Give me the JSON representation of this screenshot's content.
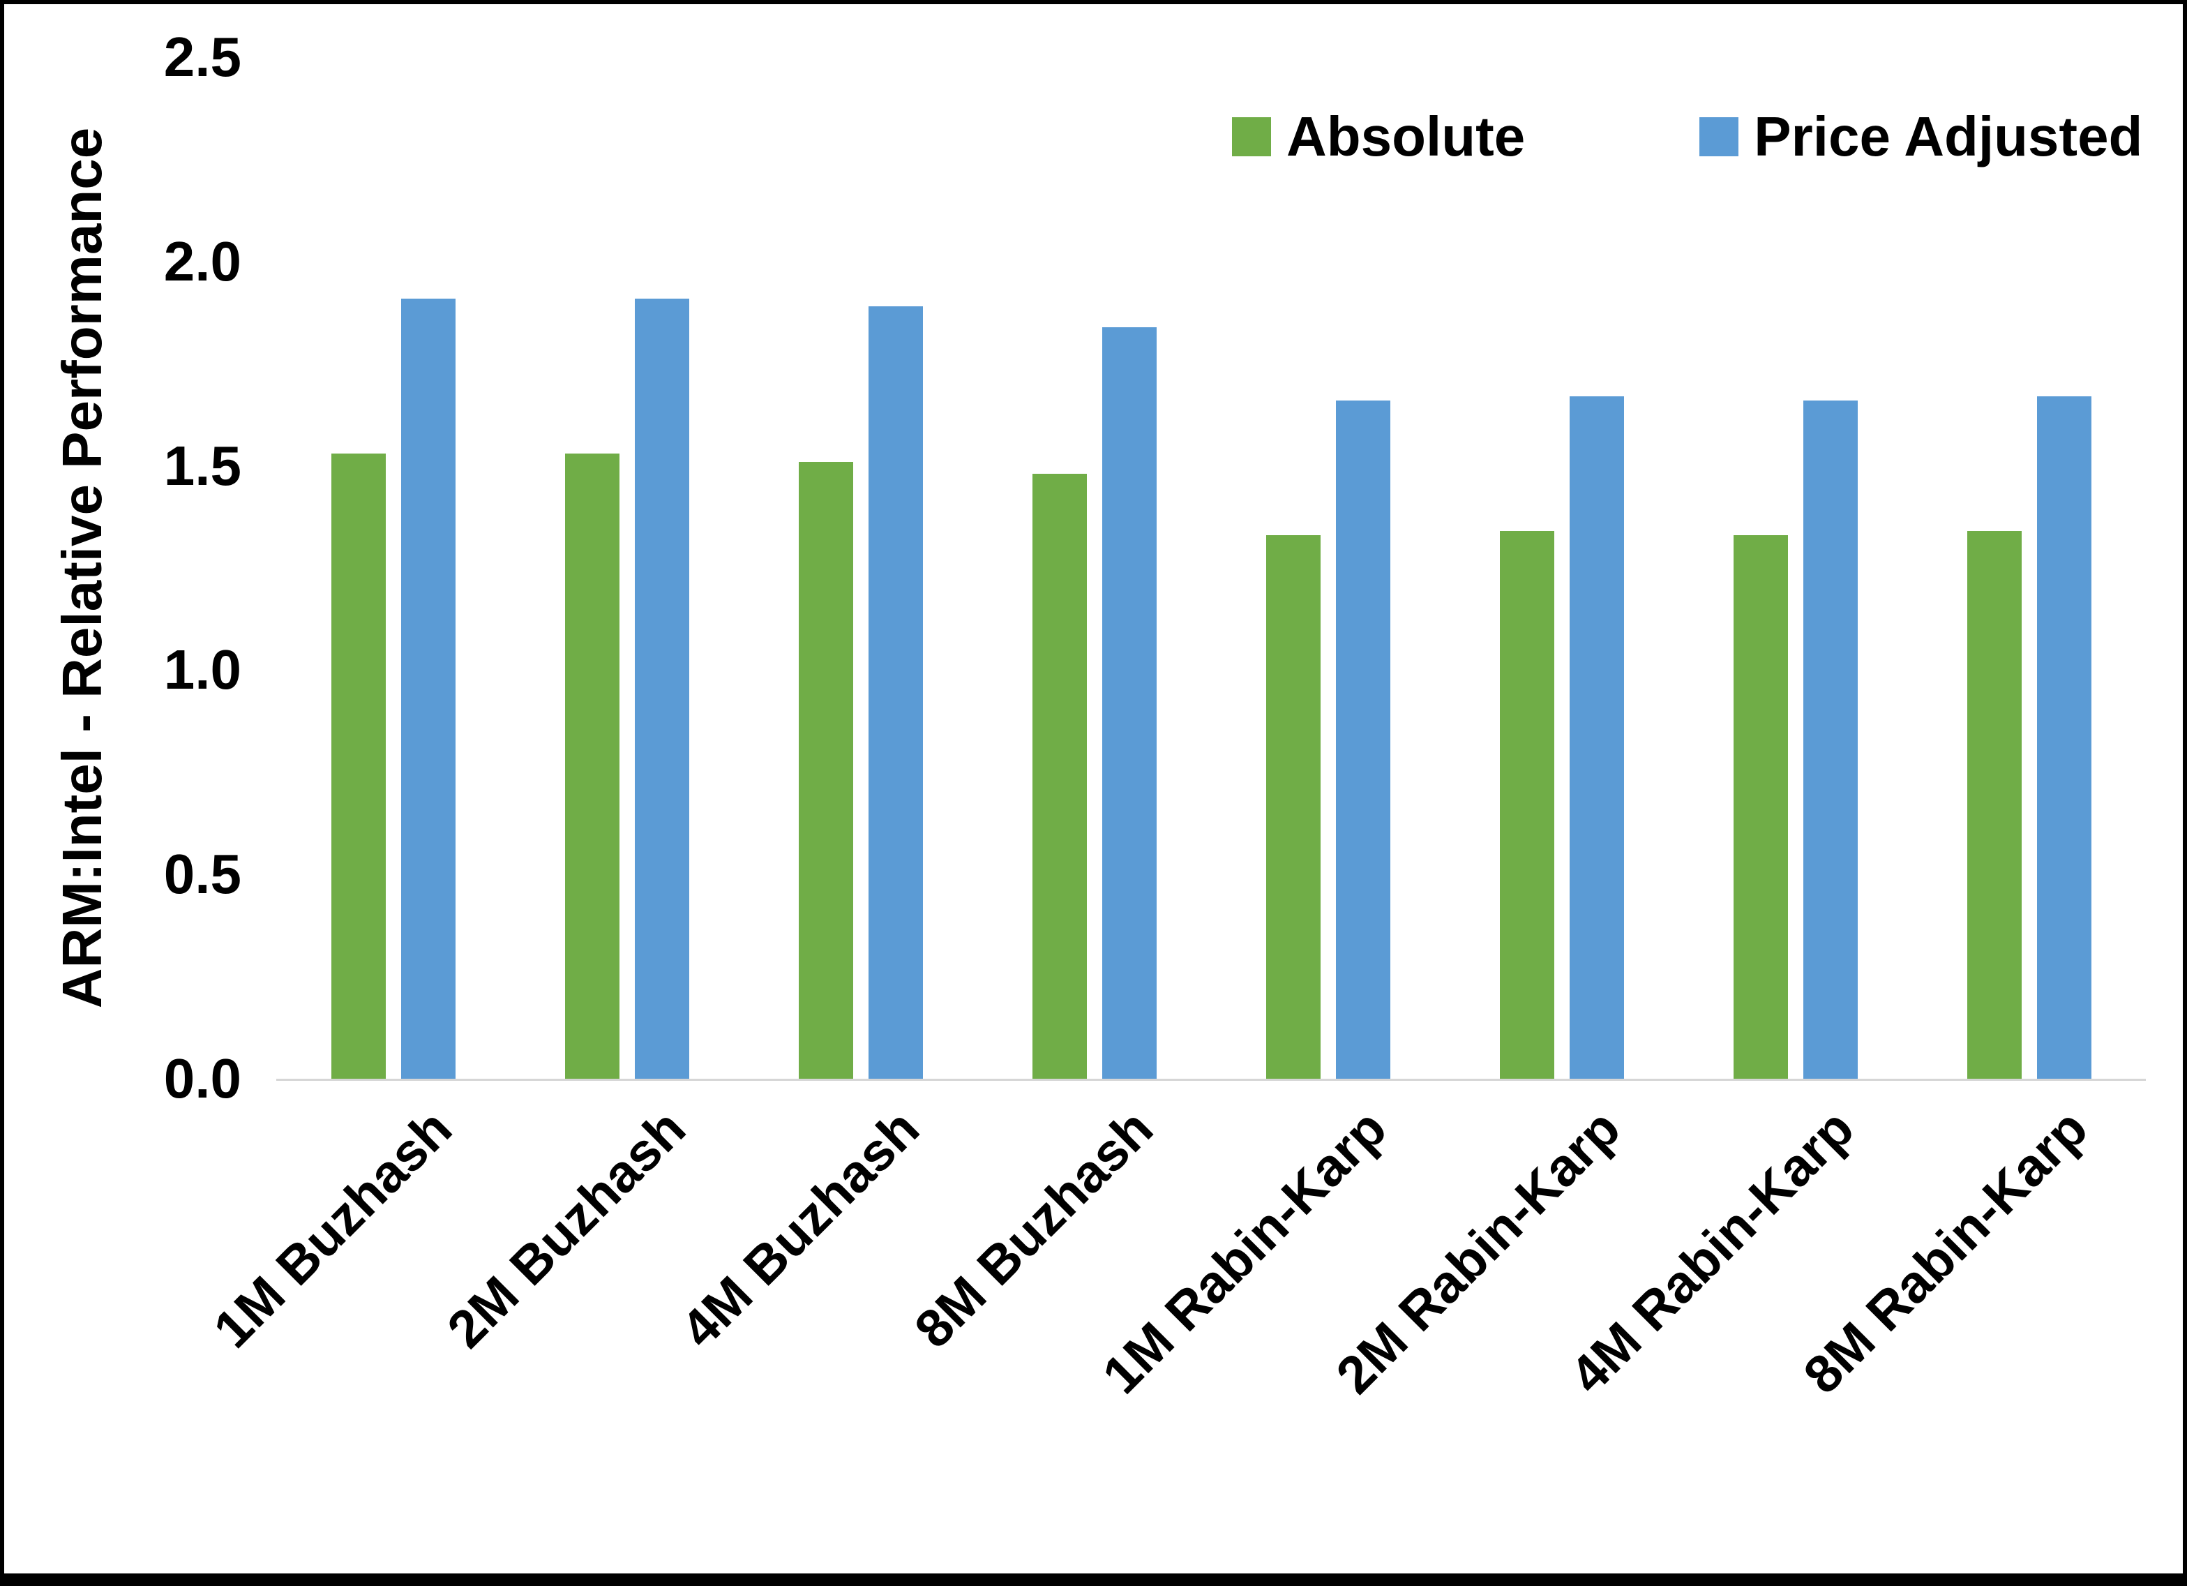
{
  "figure": {
    "background": "#ffffff",
    "border_color": "#000000"
  },
  "chart_data": {
    "type": "bar",
    "title": "",
    "xlabel": "",
    "ylabel": "ARM:Intel - Relative Performance",
    "ylim": [
      0,
      2.5
    ],
    "yticks": [
      "0.0",
      "0.5",
      "1.0",
      "1.5",
      "2.0",
      "2.5"
    ],
    "grid": false,
    "legend_position": "top-right",
    "categories": [
      "1M Buzhash",
      "2M Buzhash",
      "4M Buzhash",
      "8M Buzhash",
      "1M Rabin-Karp",
      "2M Rabin-Karp",
      "4M Rabin-Karp",
      "8M Rabin-Karp"
    ],
    "series": [
      {
        "name": "Absolute",
        "color": "#70AD47",
        "values": [
          1.53,
          1.53,
          1.51,
          1.48,
          1.33,
          1.34,
          1.33,
          1.34
        ]
      },
      {
        "name": "Price Adjusted",
        "color": "#5B9BD5",
        "values": [
          1.91,
          1.91,
          1.89,
          1.84,
          1.66,
          1.67,
          1.66,
          1.67
        ]
      }
    ]
  }
}
